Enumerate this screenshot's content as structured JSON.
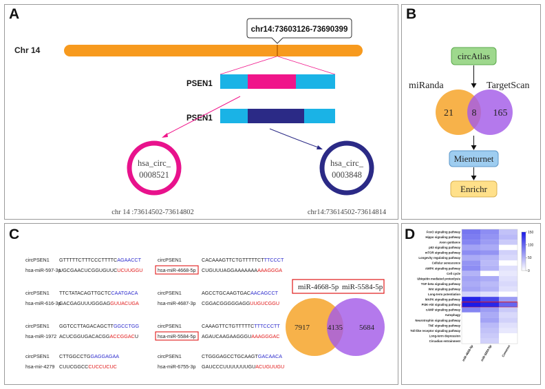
{
  "panels": {
    "a": "A",
    "b": "B",
    "c": "C",
    "d": "D"
  },
  "panel_a": {
    "chromosome": "Chr 14",
    "locus": "chr14:73603126-73690399",
    "gene_top": "PSEN1",
    "gene_bottom": "PSEN1",
    "circ1": {
      "name_line1": "hsa_circ_",
      "name_line2": "0008521",
      "coords": "chr 14 :73614502-73614802",
      "color": "#e8128c"
    },
    "circ2": {
      "name_line1": "hsa_circ_",
      "name_line2": "0003848",
      "coords": "chr14:73614502-73614814",
      "color": "#2b2a86"
    }
  },
  "panel_b": {
    "source": "circAtlas",
    "venn_left_label": "miRanda",
    "venn_right_label": "TargetScan",
    "left_only": "21",
    "overlap": "8",
    "right_only": "165",
    "tool": "Mienturnet",
    "enrichment": "Enrichr"
  },
  "panel_c": {
    "pairs": [
      {
        "circ": "circPSEN1",
        "mir": "hsa-miR-597-3p",
        "circ_seq": [
          {
            "t": "GTTTTTCTTTCCCTTTTC",
            "c": "k"
          },
          {
            "t": "AGAACCT",
            "c": "b"
          }
        ],
        "mir_seq": [
          {
            "t": "UGCGAACUCGGUGUUC",
            "c": "k"
          },
          {
            "t": "UCUUGGU",
            "c": "r"
          }
        ]
      },
      {
        "circ": "circPSEN1",
        "mir": "hsa-miR-4668-5p",
        "boxed": true,
        "circ_seq": [
          {
            "t": "CACAAAGTTCTGTTTTTCT",
            "c": "k"
          },
          {
            "t": "TTCCCT",
            "c": "b"
          }
        ],
        "mir_seq": [
          {
            "t": "CUGUUUAGGAAAAAAA",
            "c": "k"
          },
          {
            "t": "AAAGGGA",
            "c": "r"
          }
        ]
      },
      {
        "circ": "circPSEN1",
        "mir": "hsa-miR-616-3p",
        "circ_seq": [
          {
            "t": "TTCTATACAGTTGCTC",
            "c": "k"
          },
          {
            "t": "CAATGACA",
            "c": "b"
          }
        ],
        "mir_seq": [
          {
            "t": "GACGAGUUUGGGAG",
            "c": "k"
          },
          {
            "t": "GUUACUGA",
            "c": "r"
          }
        ]
      },
      {
        "circ": "circPSEN1",
        "mir": "hsa-miR-4687-3p",
        "circ_seq": [
          {
            "t": "AGCCTGCAAGTGAC",
            "c": "k"
          },
          {
            "t": "AACAGCCT",
            "c": "b"
          }
        ],
        "mir_seq": [
          {
            "t": "CGGACGGGGGAGG",
            "c": "k"
          },
          {
            "t": "UUGUCGGU",
            "c": "r"
          }
        ]
      },
      {
        "circ": "circPSEN1",
        "mir": "hsa-miR-1972",
        "circ_seq": [
          {
            "t": "GGTCCTTAGACAGCTT",
            "c": "k"
          },
          {
            "t": "GGCCTGG",
            "c": "b"
          }
        ],
        "mir_seq": [
          {
            "t": "ACUCGGUGACACGG",
            "c": "k"
          },
          {
            "t": "ACCGGAC",
            "c": "r"
          },
          {
            "t": "U",
            "c": "k"
          }
        ]
      },
      {
        "circ": "circPSEN1",
        "mir": "hsa-miR-5584-5p",
        "boxed": true,
        "circ_seq": [
          {
            "t": "CAAAGTTCTGTTTTTC",
            "c": "k"
          },
          {
            "t": "TTTCCCTT",
            "c": "b"
          }
        ],
        "mir_seq": [
          {
            "t": "AGAUCAAGAAGGGU",
            "c": "k"
          },
          {
            "t": "AAAGGGAC",
            "c": "r"
          }
        ]
      },
      {
        "circ": "circPSEN1",
        "mir": "hsa-mir-4279",
        "circ_seq": [
          {
            "t": "CTTGGCCTG",
            "c": "k"
          },
          {
            "t": "GAGGAGAA",
            "c": "b"
          }
        ],
        "mir_seq": [
          {
            "t": "CUUCGGCC",
            "c": "k"
          },
          {
            "t": "CUCCUCUC",
            "c": "r"
          }
        ]
      },
      {
        "circ": "circPSEN1",
        "mir": "hsa-miR-6755-3p",
        "circ_seq": [
          {
            "t": "CTGGGAGCCTGCAAGT",
            "c": "k"
          },
          {
            "t": "GACAACA",
            "c": "b"
          }
        ],
        "mir_seq": [
          {
            "t": "GAUCCCUUUUUUUGU",
            "c": "k"
          },
          {
            "t": "ACUGUUGU",
            "c": "r"
          }
        ]
      }
    ],
    "venn_left_label": "miR-4668-5p",
    "venn_right_label": "miR-5584-5p",
    "left_only": "7917",
    "overlap": "4135",
    "right_only": "5684"
  },
  "chart_data": {
    "type": "heatmap",
    "rows": [
      "FoxO signaling pathway",
      "Hippo signaling pathway",
      "Axon guidance",
      "p53 signaling pathway",
      "mTOR signaling pathway",
      "Longevity regulating pathway",
      "Cellular senescence",
      "AMPK signaling pathway",
      "Cell cycle",
      "Ubiquitin mediated proteolysis",
      "TGF-beta signaling pathway",
      "Wnt signaling pathway",
      "Long-term potentiation",
      "MAPK signaling pathway",
      "PI3K-Akt signaling pathway",
      "cAMP signaling pathway",
      "Autophagy",
      "Neurotrophin signaling pathway",
      "TNF signaling pathway",
      "Toll-like receptor signaling pathway",
      "Long-term depression",
      "Circadian entrainment"
    ],
    "columns": [
      "miR-4668-5p",
      "miR-5584-5p",
      "Common"
    ],
    "values": [
      [
        90,
        75,
        40
      ],
      [
        85,
        70,
        45
      ],
      [
        80,
        65,
        35
      ],
      [
        60,
        55,
        0
      ],
      [
        75,
        70,
        30
      ],
      [
        55,
        50,
        25
      ],
      [
        70,
        45,
        0
      ],
      [
        75,
        50,
        20
      ],
      [
        50,
        0,
        15
      ],
      [
        60,
        55,
        20
      ],
      [
        55,
        45,
        25
      ],
      [
        60,
        50,
        20
      ],
      [
        30,
        20,
        0
      ],
      [
        145,
        120,
        65
      ],
      [
        150,
        140,
        100
      ],
      [
        80,
        65,
        35
      ],
      [
        0,
        55,
        25
      ],
      [
        0,
        60,
        30
      ],
      [
        0,
        45,
        20
      ],
      [
        0,
        40,
        15
      ],
      [
        0,
        35,
        0
      ],
      [
        0,
        30,
        0
      ]
    ],
    "highlight_row": "PI3K-Akt signaling pathway",
    "colorbar": {
      "ticks": [
        0,
        50,
        100,
        150
      ],
      "min": 0,
      "max": 150,
      "low_color": "#ffffff",
      "high_color": "#1a1ae6"
    }
  },
  "colors": {
    "chromosome": "#f79a1e",
    "exon_light": "#1ab3e6",
    "exon_pink": "#f0158a",
    "exon_navy": "#2b2a86",
    "venn_orange": "#f7b24a",
    "venn_purple": "#a35be8",
    "highlight": "#e01818",
    "seq_blue": "#2b2acc",
    "seq_red": "#e01818",
    "circAtlas_fill": "#9ed88d",
    "mienturnet_fill": "#9ecdf0",
    "enrichr_fill": "#ffe08a"
  }
}
